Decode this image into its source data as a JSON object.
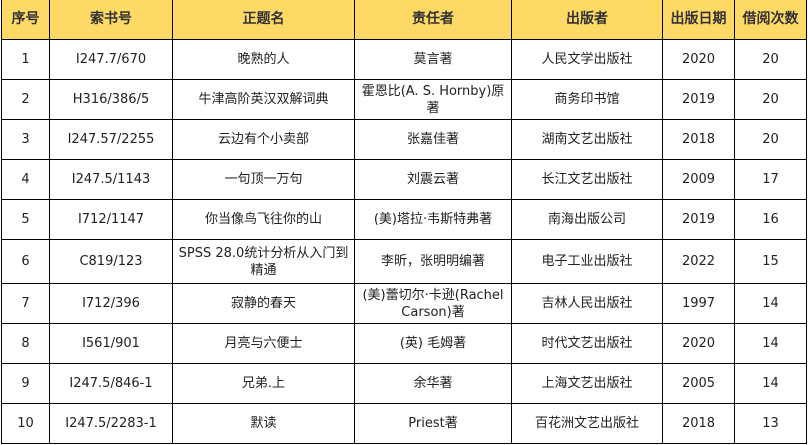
{
  "colors": {
    "header_bg": "#FFD966"
  },
  "headers": [
    "序号",
    "索书号",
    "正题名",
    "责任者",
    "出版者",
    "出版日期",
    "借阅次数"
  ],
  "rows": [
    [
      "1",
      "I247.7/670",
      "晚熟的人",
      "莫言著",
      "人民文学出版社",
      "2020",
      "20"
    ],
    [
      "2",
      "H316/386/5",
      "牛津高阶英汉双解词典",
      "霍恩比(A. S. Hornby)原著",
      "商务印书馆",
      "2019",
      "20"
    ],
    [
      "3",
      "I247.57/2255",
      "云边有个小卖部",
      "张嘉佳著",
      "湖南文艺出版社",
      "2018",
      "20"
    ],
    [
      "4",
      "I247.5/1143",
      "一句顶一万句",
      "刘震云著",
      "长江文艺出版社",
      "2009",
      "17"
    ],
    [
      "5",
      "I712/1147",
      "你当像鸟飞往你的山",
      "(美)塔拉·韦斯特弗著",
      "南海出版公司",
      "2019",
      "16"
    ],
    [
      "6",
      "C819/123",
      "SPSS 28.0统计分析从入门到精通",
      "李昕，张明明编著",
      "电子工业出版社",
      "2022",
      "15"
    ],
    [
      "7",
      "I712/396",
      "寂静的春天",
      "(美)蕾切尔·卡逊(Rachel Carson)著",
      "吉林人民出版社",
      "1997",
      "14"
    ],
    [
      "8",
      "I561/901",
      "月亮与六便士",
      "(英) 毛姆著",
      "时代文艺出版社",
      "2020",
      "14"
    ],
    [
      "9",
      "I247.5/846-1",
      "兄弟.上",
      "余华著",
      "上海文艺出版社",
      "2005",
      "14"
    ],
    [
      "10",
      "I247.5/2283-1",
      "默读",
      "Priest著",
      "百花洲文艺出版社",
      "2018",
      "13"
    ]
  ]
}
